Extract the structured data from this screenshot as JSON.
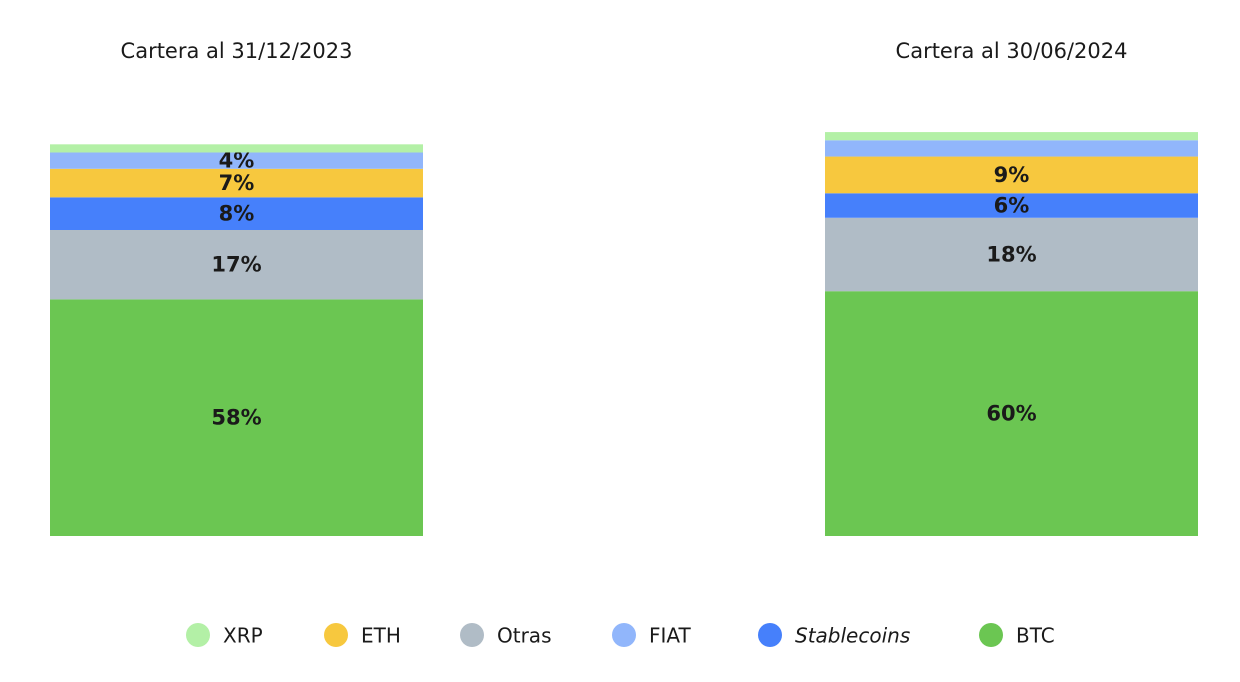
{
  "chart_data": {
    "type": "bar",
    "stacked": true,
    "categories": [
      "Cartera al 31/12/2023",
      "Cartera al 30/06/2024"
    ],
    "ylim": [
      0,
      100
    ],
    "series": [
      {
        "name": "XRP",
        "color": "#b3f0a6",
        "values": [
          2,
          2
        ],
        "value_labels": [
          null,
          null
        ]
      },
      {
        "name": "ETH",
        "color": "#f7c83e",
        "values": [
          7,
          9
        ],
        "value_labels": [
          "7%",
          "9%"
        ]
      },
      {
        "name": "Otras",
        "color": "#b0bcc6",
        "values": [
          17,
          18
        ],
        "value_labels": [
          "17%",
          "18%"
        ]
      },
      {
        "name": "FIAT",
        "color": "#91b6fb",
        "values": [
          4,
          4
        ],
        "value_labels": [
          "4%",
          null
        ]
      },
      {
        "name": "Stablecoins",
        "color": "#4680fb",
        "values": [
          8,
          6
        ],
        "value_labels": [
          "8%",
          "6%"
        ]
      },
      {
        "name": "BTC",
        "color": "#6bc652",
        "values": [
          58,
          60
        ],
        "value_labels": [
          "58%",
          "60%"
        ]
      }
    ]
  }
}
